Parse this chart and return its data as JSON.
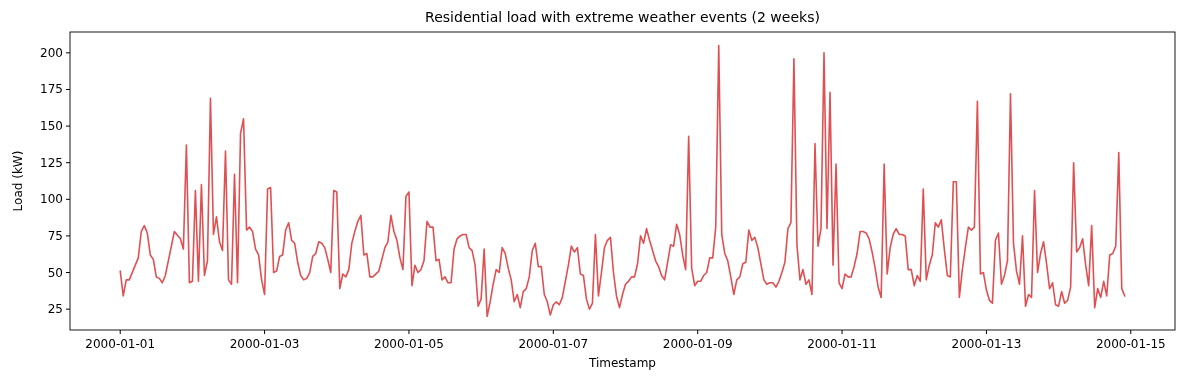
{
  "chart_data": {
    "type": "line",
    "title": "Residential load with extreme weather events (2 weeks)",
    "xlabel": "Timestamp",
    "ylabel": "Load (kW)",
    "xlim": [
      "1999-12-31T07:18",
      "2000-01-15T14:42"
    ],
    "xticks": [
      "2000-01-01",
      "2000-01-03",
      "2000-01-05",
      "2000-01-07",
      "2000-01-09",
      "2000-01-11",
      "2000-01-13",
      "2000-01-15"
    ],
    "ylim": [
      10.75,
      214.25
    ],
    "yticks": [
      25,
      50,
      75,
      100,
      125,
      150,
      175,
      200
    ],
    "marker": "none",
    "line_style": "solid",
    "series": [
      {
        "color": "#e05052",
        "x": [
          "2000-01-01T00:00",
          "2000-01-01T01:00",
          "2000-01-01T02:00",
          "2000-01-01T03:00",
          "2000-01-01T06:00",
          "2000-01-01T07:00",
          "2000-01-01T08:00",
          "2000-01-01T09:00",
          "2000-01-01T10:00",
          "2000-01-01T11:00",
          "2000-01-01T12:00",
          "2000-01-01T13:00",
          "2000-01-01T14:00",
          "2000-01-01T15:00",
          "2000-01-01T18:00",
          "2000-01-01T20:00",
          "2000-01-01T21:00",
          "2000-01-01T22:00",
          "2000-01-01T23:00",
          "2000-01-02T00:00",
          "2000-01-02T01:00",
          "2000-01-02T02:00",
          "2000-01-02T03:00",
          "2000-01-02T04:00",
          "2000-01-02T05:00",
          "2000-01-02T06:00",
          "2000-01-02T07:00",
          "2000-01-02T08:00",
          "2000-01-02T09:00",
          "2000-01-02T10:00",
          "2000-01-02T11:00",
          "2000-01-02T12:00",
          "2000-01-02T13:00",
          "2000-01-02T14:00",
          "2000-01-02T15:00",
          "2000-01-02T16:00",
          "2000-01-02T17:00",
          "2000-01-02T18:00",
          "2000-01-02T19:00",
          "2000-01-02T20:00",
          "2000-01-02T21:00",
          "2000-01-02T22:00",
          "2000-01-02T23:00",
          "2000-01-03T00:00",
          "2000-01-03T01:00",
          "2000-01-03T02:00",
          "2000-01-03T03:00",
          "2000-01-03T04:00",
          "2000-01-03T05:00",
          "2000-01-03T06:00",
          "2000-01-03T07:00",
          "2000-01-03T08:00",
          "2000-01-03T09:00",
          "2000-01-03T10:00",
          "2000-01-03T11:00",
          "2000-01-03T12:00",
          "2000-01-03T13:00",
          "2000-01-03T14:00",
          "2000-01-03T15:00",
          "2000-01-03T16:00",
          "2000-01-03T17:00",
          "2000-01-03T18:00",
          "2000-01-03T19:00",
          "2000-01-03T20:00",
          "2000-01-03T21:00",
          "2000-01-03T22:00",
          "2000-01-03T23:00",
          "2000-01-04T00:00",
          "2000-01-04T01:00",
          "2000-01-04T02:00",
          "2000-01-04T03:00",
          "2000-01-04T04:00",
          "2000-01-04T05:00",
          "2000-01-04T06:00",
          "2000-01-04T07:00",
          "2000-01-04T08:00",
          "2000-01-04T09:00",
          "2000-01-04T10:00",
          "2000-01-04T11:00",
          "2000-01-04T12:00",
          "2000-01-04T14:00",
          "2000-01-04T16:00",
          "2000-01-04T17:00",
          "2000-01-04T18:00",
          "2000-01-04T19:00",
          "2000-01-04T20:00",
          "2000-01-04T21:00",
          "2000-01-04T22:00",
          "2000-01-04T23:00",
          "2000-01-05T00:00",
          "2000-01-05T01:00",
          "2000-01-05T02:00",
          "2000-01-05T03:00",
          "2000-01-05T04:00",
          "2000-01-05T05:00",
          "2000-01-05T06:00",
          "2000-01-05T07:00",
          "2000-01-05T08:00",
          "2000-01-05T09:00",
          "2000-01-05T10:00",
          "2000-01-05T11:00",
          "2000-01-05T12:00",
          "2000-01-05T13:00",
          "2000-01-05T14:00",
          "2000-01-05T15:00",
          "2000-01-05T16:00",
          "2000-01-05T17:00",
          "2000-01-05T18:00",
          "2000-01-05T19:00",
          "2000-01-05T20:00",
          "2000-01-05T21:00",
          "2000-01-05T22:00",
          "2000-01-05T23:00",
          "2000-01-06T00:00",
          "2000-01-06T01:00",
          "2000-01-06T02:00",
          "2000-01-06T03:00",
          "2000-01-06T04:00",
          "2000-01-06T05:00",
          "2000-01-06T06:00",
          "2000-01-06T07:00",
          "2000-01-06T08:00",
          "2000-01-06T09:00",
          "2000-01-06T10:00",
          "2000-01-06T11:00",
          "2000-01-06T12:00",
          "2000-01-06T13:00",
          "2000-01-06T14:00",
          "2000-01-06T15:00",
          "2000-01-06T16:00",
          "2000-01-06T17:00",
          "2000-01-06T18:00",
          "2000-01-06T19:00",
          "2000-01-06T20:00",
          "2000-01-06T21:00",
          "2000-01-06T22:00",
          "2000-01-06T23:00",
          "2000-01-07T00:00",
          "2000-01-07T01:00",
          "2000-01-07T02:00",
          "2000-01-07T03:00",
          "2000-01-07T04:00",
          "2000-01-07T05:00",
          "2000-01-07T06:00",
          "2000-01-07T07:00",
          "2000-01-07T08:00",
          "2000-01-07T09:00",
          "2000-01-07T10:00",
          "2000-01-07T11:00",
          "2000-01-07T12:00",
          "2000-01-07T13:00",
          "2000-01-07T14:00",
          "2000-01-07T15:00",
          "2000-01-07T16:00",
          "2000-01-07T17:00",
          "2000-01-07T18:00",
          "2000-01-07T19:00",
          "2000-01-07T20:00",
          "2000-01-07T21:00",
          "2000-01-07T22:00",
          "2000-01-07T23:00",
          "2000-01-08T00:00",
          "2000-01-08T01:00",
          "2000-01-08T02:00",
          "2000-01-08T03:00",
          "2000-01-08T04:00",
          "2000-01-08T05:00",
          "2000-01-08T06:00",
          "2000-01-08T07:00",
          "2000-01-08T08:00",
          "2000-01-08T09:00",
          "2000-01-08T10:00",
          "2000-01-08T11:00",
          "2000-01-08T12:00",
          "2000-01-08T13:00",
          "2000-01-08T14:00",
          "2000-01-08T15:00",
          "2000-01-08T16:00",
          "2000-01-08T17:00",
          "2000-01-08T18:00",
          "2000-01-08T19:00",
          "2000-01-08T20:00",
          "2000-01-08T21:00",
          "2000-01-08T22:00",
          "2000-01-08T23:00",
          "2000-01-09T00:00",
          "2000-01-09T01:00",
          "2000-01-09T02:00",
          "2000-01-09T03:00",
          "2000-01-09T04:00",
          "2000-01-09T05:00",
          "2000-01-09T06:00",
          "2000-01-09T07:00",
          "2000-01-09T08:00",
          "2000-01-09T09:00",
          "2000-01-09T10:00",
          "2000-01-09T11:00",
          "2000-01-09T12:00",
          "2000-01-09T13:00",
          "2000-01-09T14:00",
          "2000-01-09T15:00",
          "2000-01-09T16:00",
          "2000-01-09T17:00",
          "2000-01-09T18:00",
          "2000-01-09T19:00",
          "2000-01-09T20:00",
          "2000-01-09T21:00",
          "2000-01-09T22:00",
          "2000-01-09T23:00",
          "2000-01-10T00:00",
          "2000-01-10T01:00",
          "2000-01-10T02:00",
          "2000-01-10T03:00",
          "2000-01-10T04:00",
          "2000-01-10T05:00",
          "2000-01-10T06:00",
          "2000-01-10T07:00",
          "2000-01-10T08:00",
          "2000-01-10T09:00",
          "2000-01-10T10:00",
          "2000-01-10T11:00",
          "2000-01-10T12:00",
          "2000-01-10T13:00",
          "2000-01-10T14:00",
          "2000-01-10T15:00",
          "2000-01-10T16:00",
          "2000-01-10T17:00",
          "2000-01-10T18:00",
          "2000-01-10T19:00",
          "2000-01-10T20:00",
          "2000-01-10T21:00",
          "2000-01-10T22:00",
          "2000-01-10T23:00",
          "2000-01-11T00:00",
          "2000-01-11T01:00",
          "2000-01-11T02:00",
          "2000-01-11T03:00",
          "2000-01-11T04:00",
          "2000-01-11T05:00",
          "2000-01-11T06:00",
          "2000-01-11T07:00",
          "2000-01-11T08:00",
          "2000-01-11T09:00",
          "2000-01-11T10:00",
          "2000-01-11T11:00",
          "2000-01-11T12:00",
          "2000-01-11T13:00",
          "2000-01-11T14:00",
          "2000-01-11T15:00",
          "2000-01-11T16:00",
          "2000-01-11T17:00",
          "2000-01-11T18:00",
          "2000-01-11T19:00",
          "2000-01-11T20:00",
          "2000-01-11T21:00",
          "2000-01-11T22:00",
          "2000-01-11T23:00",
          "2000-01-12T00:00",
          "2000-01-12T01:00",
          "2000-01-12T02:00",
          "2000-01-12T03:00",
          "2000-01-12T04:00",
          "2000-01-12T05:00",
          "2000-01-12T06:00",
          "2000-01-12T07:00",
          "2000-01-12T08:00",
          "2000-01-12T09:00",
          "2000-01-12T10:00",
          "2000-01-12T11:00",
          "2000-01-12T12:00",
          "2000-01-12T13:00",
          "2000-01-12T14:00",
          "2000-01-12T15:00",
          "2000-01-12T16:00",
          "2000-01-12T17:00",
          "2000-01-12T18:00",
          "2000-01-12T19:00",
          "2000-01-12T20:00",
          "2000-01-12T21:00",
          "2000-01-12T22:00",
          "2000-01-12T23:00",
          "2000-01-13T00:00",
          "2000-01-13T01:00",
          "2000-01-13T02:00",
          "2000-01-13T03:00",
          "2000-01-13T04:00",
          "2000-01-13T05:00",
          "2000-01-13T06:00",
          "2000-01-13T07:00",
          "2000-01-13T08:00",
          "2000-01-13T09:00",
          "2000-01-13T10:00",
          "2000-01-13T11:00",
          "2000-01-13T12:00",
          "2000-01-13T13:00",
          "2000-01-13T14:00",
          "2000-01-13T15:00",
          "2000-01-13T16:00",
          "2000-01-13T17:00",
          "2000-01-13T18:00",
          "2000-01-13T19:00",
          "2000-01-13T20:00",
          "2000-01-13T21:00",
          "2000-01-13T22:00",
          "2000-01-13T23:00",
          "2000-01-14T00:00",
          "2000-01-14T01:00",
          "2000-01-14T02:00",
          "2000-01-14T03:00",
          "2000-01-14T04:00",
          "2000-01-14T05:00",
          "2000-01-14T06:00",
          "2000-01-14T07:00",
          "2000-01-14T08:00",
          "2000-01-14T09:00",
          "2000-01-14T10:00",
          "2000-01-14T11:00",
          "2000-01-14T12:00",
          "2000-01-14T13:00",
          "2000-01-14T14:00",
          "2000-01-14T15:00",
          "2000-01-14T16:00",
          "2000-01-14T17:00",
          "2000-01-14T18:00",
          "2000-01-14T19:00",
          "2000-01-14T20:00",
          "2000-01-14T21:00",
          "2000-01-14T22:00"
        ],
        "values": [
          51,
          34,
          45,
          45,
          60,
          78,
          82,
          77,
          62,
          59,
          47,
          46,
          43,
          48,
          78,
          73,
          66,
          137,
          43,
          44,
          106,
          44,
          110,
          48,
          58,
          169,
          76,
          88,
          71,
          65,
          133,
          45,
          42,
          117,
          43,
          145,
          155,
          79,
          81,
          78,
          66,
          62,
          45,
          35,
          107,
          108,
          50,
          51,
          61,
          62,
          79,
          84,
          72,
          70,
          57,
          48,
          45,
          46,
          50,
          61,
          63,
          71,
          70,
          67,
          59,
          50,
          106,
          105,
          39,
          49,
          47,
          52,
          70,
          78,
          85,
          89,
          62,
          63,
          47,
          47,
          51,
          67,
          71,
          89,
          78,
          72,
          60,
          52,
          102,
          105,
          41,
          55,
          50,
          52,
          58,
          85,
          81,
          81,
          58,
          59,
          45,
          47,
          43,
          43,
          66,
          73,
          75,
          76,
          76,
          67,
          65,
          55,
          27,
          32,
          66,
          20,
          30,
          42,
          52,
          50,
          67,
          63,
          53,
          45,
          30,
          35,
          26,
          37,
          39,
          47,
          65,
          70,
          54,
          54,
          35,
          30,
          21,
          28,
          30,
          28,
          33,
          44,
          55,
          68,
          64,
          67,
          49,
          48,
          32,
          25,
          29,
          76,
          34,
          50,
          67,
          72,
          74,
          50,
          34,
          26,
          35,
          42,
          44,
          47,
          47,
          56,
          75,
          70,
          80,
          72,
          65,
          58,
          54,
          48,
          45,
          57,
          69,
          68,
          83,
          76,
          62,
          52,
          143,
          53,
          41,
          44,
          44,
          48,
          50,
          60,
          60,
          81,
          205,
          76,
          63,
          58,
          47,
          35,
          45,
          47,
          56,
          57,
          79,
          72,
          74,
          67,
          56,
          45,
          42,
          43,
          43,
          40,
          44,
          50,
          57,
          80,
          84,
          196,
          69,
          45,
          52,
          42,
          45,
          35,
          138,
          68,
          80,
          200,
          80,
          173,
          55,
          124,
          43,
          39,
          49,
          47,
          47,
          54,
          63,
          78,
          78,
          77,
          73,
          64,
          53,
          40,
          33,
          124,
          49,
          67,
          76,
          80,
          76,
          76,
          75,
          52,
          52,
          41,
          48,
          44,
          107,
          45,
          55,
          62,
          84,
          81,
          86,
          66,
          48,
          47,
          112,
          112,
          33,
          52,
          67,
          81,
          79,
          81,
          167,
          49,
          50,
          38,
          31,
          29,
          72,
          77,
          42,
          48,
          58,
          172,
          70,
          51,
          42,
          75,
          27,
          35,
          33,
          106,
          50,
          63,
          71,
          56,
          39,
          43,
          28,
          27,
          37,
          29,
          31,
          40,
          125,
          64,
          67,
          73,
          55,
          41,
          82,
          26,
          39,
          33,
          44,
          34,
          62,
          63,
          68,
          132,
          39,
          34
        ]
      }
    ]
  }
}
